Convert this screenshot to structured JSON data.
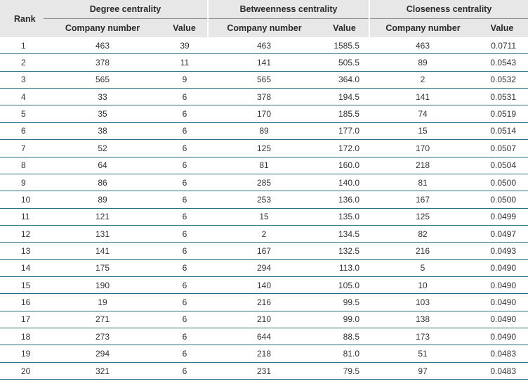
{
  "headers": {
    "rank": "Rank",
    "groups": [
      "Degree centrality",
      "Betweenness centrality",
      "Closeness centrality"
    ],
    "company_number": "Company number",
    "value": "Value"
  },
  "rows": [
    [
      "1",
      "463",
      "39",
      "463",
      "1585.5",
      "463",
      "0.0711"
    ],
    [
      "2",
      "378",
      "11",
      "141",
      "505.5",
      "89",
      "0.0543"
    ],
    [
      "3",
      "565",
      "9",
      "565",
      "364.0",
      "2",
      "0.0532"
    ],
    [
      "4",
      "33",
      "6",
      "378",
      "194.5",
      "141",
      "0.0531"
    ],
    [
      "5",
      "35",
      "6",
      "170",
      "185.5",
      "74",
      "0.0519"
    ],
    [
      "6",
      "38",
      "6",
      "89",
      "177.0",
      "15",
      "0.0514"
    ],
    [
      "7",
      "52",
      "6",
      "125",
      "172.0",
      "170",
      "0.0507"
    ],
    [
      "8",
      "64",
      "6",
      "81",
      "160.0",
      "218",
      "0.0504"
    ],
    [
      "9",
      "86",
      "6",
      "285",
      "140.0",
      "81",
      "0.0500"
    ],
    [
      "10",
      "89",
      "6",
      "253",
      "136.0",
      "167",
      "0.0500"
    ],
    [
      "11",
      "121",
      "6",
      "15",
      "135.0",
      "125",
      "0.0499"
    ],
    [
      "12",
      "131",
      "6",
      "2",
      "134.5",
      "82",
      "0.0497"
    ],
    [
      "13",
      "141",
      "6",
      "167",
      "132.5",
      "216",
      "0.0493"
    ],
    [
      "14",
      "175",
      "6",
      "294",
      "113.0",
      "5",
      "0.0490"
    ],
    [
      "15",
      "190",
      "6",
      "140",
      "105.0",
      "10",
      "0.0490"
    ],
    [
      "16",
      "19",
      "6",
      "216",
      "99.5",
      "103",
      "0.0490"
    ],
    [
      "17",
      "271",
      "6",
      "210",
      "99.0",
      "138",
      "0.0490"
    ],
    [
      "18",
      "273",
      "6",
      "644",
      "88.5",
      "173",
      "0.0490"
    ],
    [
      "19",
      "294",
      "6",
      "218",
      "81.0",
      "51",
      "0.0483"
    ],
    [
      "20",
      "321",
      "6",
      "231",
      "79.5",
      "97",
      "0.0483"
    ]
  ]
}
